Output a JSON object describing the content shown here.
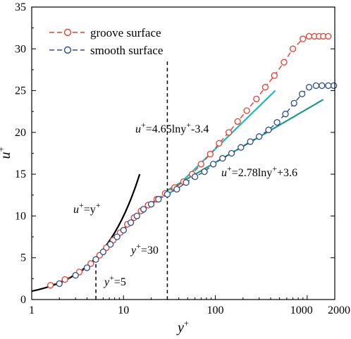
{
  "chart_data": {
    "type": "line",
    "x_scale": "log",
    "xlim": [
      1,
      2000
    ],
    "ylim": [
      0,
      35
    ],
    "x_ticks": [
      {
        "value": 1,
        "label": "1"
      },
      {
        "value": 10,
        "label": "10"
      },
      {
        "value": 100,
        "label": "100"
      },
      {
        "value": 1000,
        "label": "1000"
      },
      {
        "value": 2000,
        "label": "2000"
      }
    ],
    "y_ticks": [
      0,
      5,
      10,
      15,
      20,
      25,
      30,
      35
    ],
    "xlabel": "y",
    "xlabel_sup": "+",
    "ylabel": "u",
    "ylabel_sup": "+",
    "legend": {
      "position": "top-left",
      "entries": [
        {
          "label": "groove surface",
          "color": "#ef3b2c"
        },
        {
          "label": "smooth surface",
          "color": "#2b4c8c"
        }
      ]
    },
    "series": [
      {
        "name": "groove surface",
        "color": "#ef3b2c",
        "marker": "open-circle",
        "line": "dashed",
        "x": [
          1.6,
          2.3,
          3.3,
          4.4,
          5.5,
          6.5,
          7.7,
          9.2,
          11,
          13,
          15.5,
          18.5,
          23,
          28.5,
          36,
          45,
          56,
          70,
          88,
          110,
          140,
          175,
          220,
          280,
          350,
          440,
          560,
          700,
          900,
          1050,
          1200,
          1350,
          1500,
          1700
        ],
        "y": [
          1.7,
          2.4,
          3.3,
          4.3,
          5.3,
          6.2,
          7.1,
          8.0,
          9.0,
          9.8,
          10.6,
          11.3,
          12.0,
          12.7,
          13.4,
          14.1,
          15.0,
          16.2,
          17.4,
          18.7,
          20.0,
          21.3,
          22.6,
          24.0,
          25.4,
          26.8,
          28.4,
          30.0,
          31.2,
          31.5,
          31.5,
          31.5,
          31.5,
          31.5
        ]
      },
      {
        "name": "smooth surface",
        "color": "#2b4c8c",
        "marker": "open-circle",
        "line": "dashed",
        "x": [
          2.0,
          3.0,
          4.0,
          5.0,
          6.0,
          7.2,
          8.5,
          10,
          12,
          14,
          16.5,
          20,
          24,
          30,
          38,
          48,
          60,
          76,
          95,
          120,
          150,
          190,
          240,
          300,
          380,
          470,
          580,
          720,
          880,
          1050,
          1250,
          1450,
          1700,
          1950
        ],
        "y": [
          1.9,
          2.9,
          3.8,
          4.8,
          5.7,
          6.6,
          7.5,
          8.3,
          9.2,
          10.0,
          10.8,
          11.4,
          12.0,
          12.6,
          13.2,
          14.0,
          14.7,
          15.3,
          16.2,
          16.9,
          17.5,
          18.2,
          18.9,
          19.5,
          20.3,
          21.2,
          22.2,
          23.5,
          24.6,
          25.4,
          25.6,
          25.6,
          25.6,
          25.6
        ]
      }
    ],
    "fits": [
      {
        "label": "u+=y+",
        "type": "linear",
        "color": "#000000",
        "x": [
          1,
          15
        ]
      },
      {
        "label": "u+=4.65lny+-3.4",
        "type": "log",
        "a": 4.65,
        "b": -3.4,
        "color": "#1ab9c6",
        "x": [
          30,
          450
        ]
      },
      {
        "label": "u+=2.78lny+3.6",
        "type": "log",
        "a": 2.78,
        "b": 3.6,
        "color": "#1e9a8a",
        "x": [
          30,
          1500
        ]
      }
    ],
    "annotations": [
      {
        "id": "viscous",
        "base": "u",
        "sup1": "+",
        "mid": "=y",
        "sup2": "+",
        "tail": ""
      },
      {
        "id": "groove_fit",
        "base": "u",
        "sup1": "+",
        "mid": "=4.65lny",
        "sup2": "+",
        "tail": "-3.4"
      },
      {
        "id": "smooth_fit",
        "base": "u",
        "sup1": "+",
        "mid": "=2.78lny",
        "sup2": "+",
        "tail": "+3.6"
      },
      {
        "id": "y5",
        "base": "y",
        "sup1": "+",
        "mid": "=5",
        "sup2": "",
        "tail": ""
      },
      {
        "id": "y30",
        "base": "y",
        "sup1": "+",
        "mid": "=30",
        "sup2": "",
        "tail": ""
      }
    ],
    "vlines": [
      5,
      30
    ]
  }
}
